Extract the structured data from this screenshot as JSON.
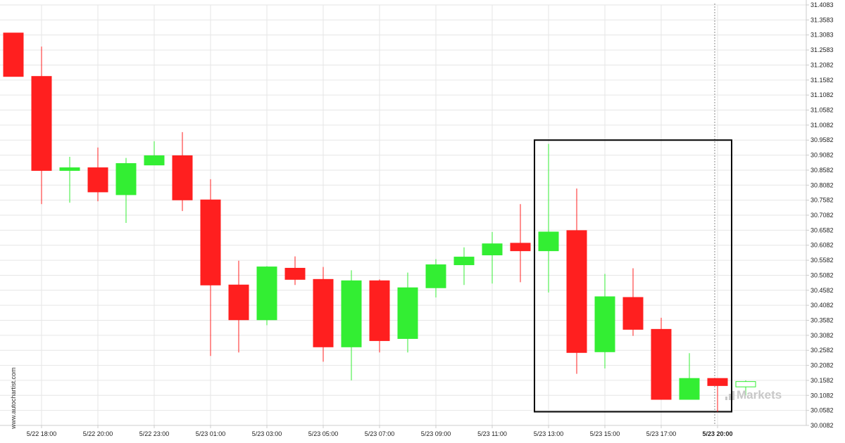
{
  "chart_data": {
    "type": "candlestick",
    "ylim": [
      30.0082,
      31.4083
    ],
    "y_ticks": [
      "31.4083",
      "31.3583",
      "31.3083",
      "31.2583",
      "31.2082",
      "31.1582",
      "31.1082",
      "31.0582",
      "31.0082",
      "30.9582",
      "30.9082",
      "30.8582",
      "30.8082",
      "30.7582",
      "30.7082",
      "30.6582",
      "30.6082",
      "30.5582",
      "30.5082",
      "30.4582",
      "30.4082",
      "30.3582",
      "30.3082",
      "30.2582",
      "30.2082",
      "30.1582",
      "30.1082",
      "30.0582",
      "30.0082"
    ],
    "x_ticks": [
      "5/22 18:00",
      "5/22 20:00",
      "5/22 23:00",
      "5/23 01:00",
      "5/23 03:00",
      "5/23 05:00",
      "5/23 07:00",
      "5/23 09:00",
      "5/23 11:00",
      "5/23 13:00",
      "5/23 15:00",
      "5/23 17:00",
      "5/23 20:00"
    ],
    "x_tick_index": [
      1,
      3,
      5,
      7,
      9,
      11,
      13,
      15,
      17,
      19,
      21,
      23,
      25
    ],
    "current_x_label": "5/23 20:00",
    "colors": {
      "up": "#33ee33",
      "down": "#ff1f1f",
      "grid": "#e6e6e6",
      "axis": "#cccccc",
      "pattern_box": "#000000",
      "current_line": "#888888"
    },
    "candles": [
      {
        "open": 31.3148,
        "close": 31.1702,
        "high": 31.3148,
        "low": 31.1702
      },
      {
        "open": 31.1702,
        "close": 30.8571,
        "high": 31.2697,
        "low": 30.7452
      },
      {
        "open": 30.8571,
        "close": 30.8661,
        "high": 30.9025,
        "low": 30.7498
      },
      {
        "open": 30.8661,
        "close": 30.7857,
        "high": 30.9337,
        "low": 30.7545
      },
      {
        "open": 30.7764,
        "close": 30.8802,
        "high": 30.8989,
        "low": 30.6826
      },
      {
        "open": 30.8753,
        "close": 30.9061,
        "high": 30.9545,
        "low": 30.8753
      },
      {
        "open": 30.9061,
        "close": 30.7591,
        "high": 30.9848,
        "low": 30.7219
      },
      {
        "open": 30.7591,
        "close": 30.4758,
        "high": 30.828,
        "low": 30.2393
      },
      {
        "open": 30.4758,
        "close": 30.36,
        "high": 30.5566,
        "low": 30.251
      },
      {
        "open": 30.36,
        "close": 30.536,
        "high": 30.5384,
        "low": 30.3419
      },
      {
        "open": 30.5316,
        "close": 30.4944,
        "high": 30.571,
        "low": 30.4758
      },
      {
        "open": 30.4944,
        "close": 30.2697,
        "high": 30.536,
        "low": 30.2204
      },
      {
        "open": 30.2697,
        "close": 30.4898,
        "high": 30.5248,
        "low": 30.1584
      },
      {
        "open": 30.4898,
        "close": 30.2905,
        "high": 30.4944,
        "low": 30.251
      },
      {
        "open": 30.2975,
        "close": 30.4665,
        "high": 30.5172,
        "low": 30.251
      },
      {
        "open": 30.4665,
        "close": 30.5431,
        "high": 30.5619,
        "low": 30.4343
      },
      {
        "open": 30.5431,
        "close": 30.5688,
        "high": 30.6011,
        "low": 30.4758
      },
      {
        "open": 30.5758,
        "close": 30.6129,
        "high": 30.6522,
        "low": 30.4806
      },
      {
        "open": 30.6149,
        "close": 30.5897,
        "high": 30.7452,
        "low": 30.4849
      },
      {
        "open": 30.5897,
        "close": 30.6522,
        "high": 30.9457,
        "low": 30.4506
      },
      {
        "open": 30.6569,
        "close": 30.251,
        "high": 30.7968,
        "low": 30.1799
      },
      {
        "open": 30.2534,
        "close": 30.4366,
        "high": 30.5127,
        "low": 30.1977
      },
      {
        "open": 30.4343,
        "close": 30.3281,
        "high": 30.5316,
        "low": 30.3063
      },
      {
        "open": 30.3281,
        "close": 30.0949,
        "high": 30.3668,
        "low": 30.0949
      },
      {
        "open": 30.0949,
        "close": 30.1646,
        "high": 30.2488,
        "low": 30.0949
      },
      {
        "open": 30.1646,
        "close": 30.1408,
        "high": 30.1646,
        "low": 30.0538
      },
      {
        "open": 30.1366,
        "close": 30.1542,
        "high": 30.1582,
        "low": 30.1082
      }
    ],
    "pattern_box": {
      "from_index": 19,
      "to_index": 25,
      "top": 30.9582,
      "bottom": 30.0538
    },
    "current_index": 25
  },
  "watermark": "www.autochartist.com",
  "brand": "Markets"
}
